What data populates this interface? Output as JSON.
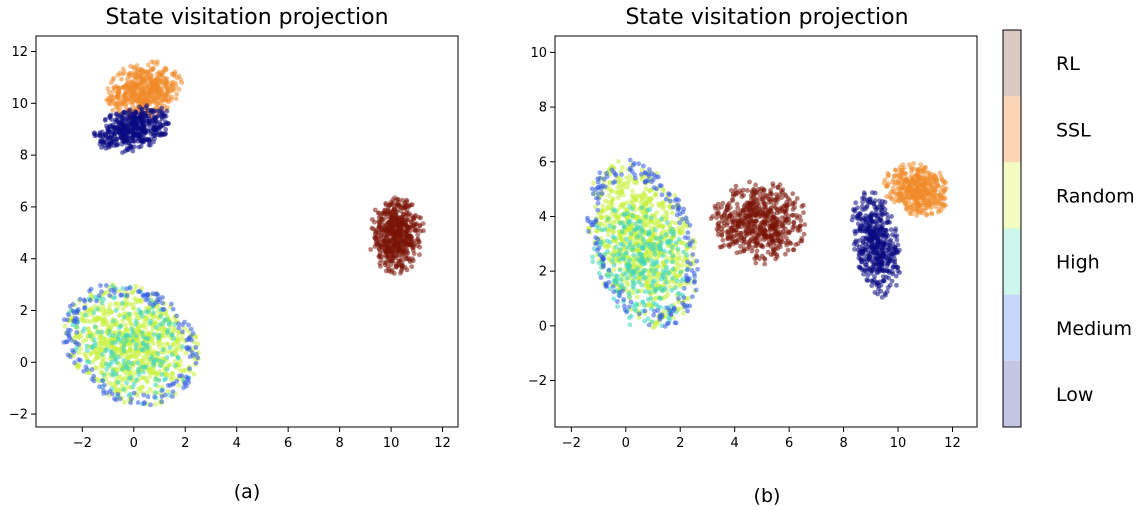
{
  "colors": {
    "Low": "#0a0a82",
    "Medium": "#2f5be0",
    "High": "#3ad6c0",
    "Random": "#c6f03a",
    "SSL": "#f08a2a",
    "RL": "#7a1408"
  },
  "colorbar": {
    "labels": [
      "RL",
      "SSL",
      "Random",
      "High",
      "Medium",
      "Low"
    ],
    "bands": [
      "#dbc8c3",
      "#fcd5b6",
      "#f3fbc2",
      "#cdf6ec",
      "#c7d6fb",
      "#c4c4e3"
    ]
  },
  "chart_data": [
    {
      "type": "scatter",
      "title": "State visitation projection",
      "caption": "(a)",
      "xlim": [
        -3.8,
        12.6
      ],
      "ylim": [
        -2.5,
        12.6
      ],
      "xticks": [
        -2,
        0,
        2,
        4,
        6,
        8,
        10,
        12
      ],
      "yticks": [
        -2,
        0,
        2,
        4,
        6,
        8,
        10,
        12
      ],
      "grid": false,
      "clusters": [
        {
          "label": "Random",
          "cx": -0.1,
          "cy": 0.7,
          "rx": 2.8,
          "ry": 2.2,
          "rot": -30,
          "n": 750
        },
        {
          "label": "High",
          "cx": -0.1,
          "cy": 0.7,
          "rx": 2.8,
          "ry": 2.2,
          "rot": -30,
          "n": 200
        },
        {
          "label": "Medium",
          "cx": -0.1,
          "cy": 0.7,
          "rx": 2.8,
          "ry": 2.2,
          "rot": -30,
          "n": 160,
          "edge": true
        },
        {
          "label": "SSL",
          "cx": 0.4,
          "cy": 10.5,
          "rx": 1.5,
          "ry": 1.1,
          "rot": 15,
          "n": 500
        },
        {
          "label": "Low",
          "cx": 0.0,
          "cy": 9.0,
          "rx": 1.6,
          "ry": 0.85,
          "rot": 15,
          "n": 450
        },
        {
          "label": "RL",
          "cx": 10.2,
          "cy": 4.9,
          "rx": 1.1,
          "ry": 1.5,
          "rot": 0,
          "n": 550
        }
      ]
    },
    {
      "type": "scatter",
      "title": "State visitation projection",
      "caption": "(b)",
      "xlim": [
        -2.6,
        12.9
      ],
      "ylim": [
        -3.7,
        10.6
      ],
      "xticks": [
        -2,
        0,
        2,
        4,
        6,
        8,
        10,
        12
      ],
      "yticks": [
        -2,
        0,
        2,
        4,
        6,
        8,
        10
      ],
      "grid": false,
      "clusters": [
        {
          "label": "Random",
          "cx": 0.6,
          "cy": 3.0,
          "rx": 1.9,
          "ry": 3.2,
          "rot": 18,
          "n": 800
        },
        {
          "label": "High",
          "cx": 0.6,
          "cy": 2.2,
          "rx": 1.9,
          "ry": 2.4,
          "rot": 18,
          "n": 280
        },
        {
          "label": "Medium",
          "cx": 0.6,
          "cy": 3.0,
          "rx": 1.9,
          "ry": 3.2,
          "rot": 18,
          "n": 180,
          "edge": true
        },
        {
          "label": "RL",
          "cx": 4.9,
          "cy": 3.8,
          "rx": 1.8,
          "ry": 1.55,
          "rot": 0,
          "n": 600
        },
        {
          "label": "SSL",
          "cx": 10.7,
          "cy": 5.0,
          "rx": 1.3,
          "ry": 0.95,
          "rot": -20,
          "n": 420
        },
        {
          "label": "Low",
          "cx": 9.2,
          "cy": 3.0,
          "rx": 0.85,
          "ry": 2.0,
          "rot": 10,
          "n": 460
        }
      ]
    }
  ]
}
